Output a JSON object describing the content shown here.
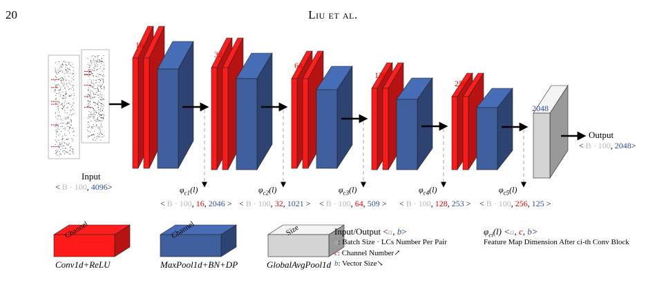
{
  "page": {
    "number": "20",
    "running_head": "Liu et al."
  },
  "diagram": {
    "input": {
      "label": "Input",
      "dim_a": "B · 100",
      "dim_b": "4096"
    },
    "output": {
      "label": "Output",
      "dim_a": "B · 100",
      "dim_b": "2048"
    },
    "gap_size": "2048",
    "blocks": [
      {
        "channels": "16",
        "phi": "φ",
        "sub": "c1",
        "arg": "(l)",
        "dim_a": "B · 100",
        "dim_c": "16",
        "dim_b": "2046"
      },
      {
        "channels": "32",
        "phi": "φ",
        "sub": "c2",
        "arg": "(l)",
        "dim_a": "B · 100",
        "dim_c": "32",
        "dim_b": "1021"
      },
      {
        "channels": "64",
        "phi": "φ",
        "sub": "c3",
        "arg": "(l)",
        "dim_a": "B · 100",
        "dim_c": "64",
        "dim_b": "509"
      },
      {
        "channels": "128",
        "phi": "φ",
        "sub": "c4",
        "arg": "(l)",
        "dim_a": "B · 100",
        "dim_c": "128",
        "dim_b": "253"
      },
      {
        "channels": "256",
        "phi": "φ",
        "sub": "c5",
        "arg": "(l)",
        "dim_a": "B · 100",
        "dim_c": "256",
        "dim_b": "125"
      }
    ]
  },
  "legend": {
    "conv": {
      "face_label": "Channel",
      "caption": "Conv1d+ReLU",
      "color": "#ff1a1a"
    },
    "pool": {
      "face_label": "Channel",
      "caption": "MaxPool1d+BN+DP",
      "color": "#3f5f9f"
    },
    "gap": {
      "face_label": "Size",
      "caption": "GlobalAvgPool1d",
      "color": "#d4d4d4"
    },
    "io_title": "Input/Output",
    "io_a": "a",
    "io_b": "b",
    "io_c": "c",
    "io_line_a": ": Batch Size · LCs Number Per Pair",
    "io_line_c": ": Channel Number↗",
    "io_line_b": ": Vector Size↘",
    "phi_title": "φ",
    "phi_sub": "ci",
    "phi_arg": "(l)",
    "phi_desc": "Feature Map Dimension After ci-th Conv Block"
  }
}
